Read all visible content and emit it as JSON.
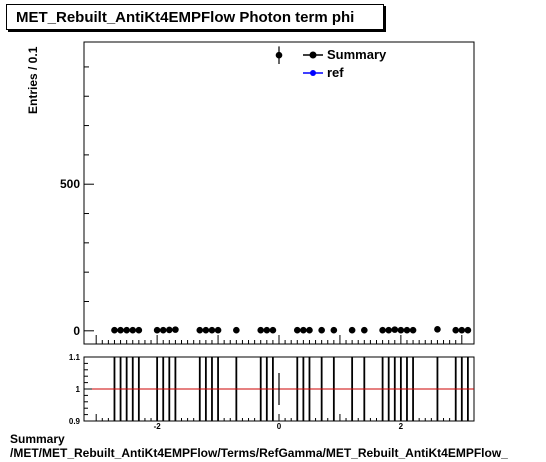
{
  "title": "MET_Rebuilt_AntiKt4EMPFlow Photon term phi",
  "footer": {
    "line1": "Summary",
    "line2": "/MET/MET_Rebuilt_AntiKt4EMPFlow/Terms/RefGamma/MET_Rebuilt_AntiKt4EMPFlow_"
  },
  "colors": {
    "summary": "#000000",
    "ref": "#0000ff",
    "ratio_line": "#cc0000"
  },
  "chart_data": [
    {
      "type": "scatter",
      "ylabel": "Entries / 0.1",
      "xlim": [
        -3.2,
        3.2
      ],
      "ylim": [
        -45,
        985
      ],
      "y_ticks": [
        0,
        500
      ],
      "legend_position": "top-right",
      "series": [
        {
          "name": "Summary",
          "x": [
            -2.7,
            -2.6,
            -2.5,
            -2.4,
            -2.3,
            -2.0,
            -1.9,
            -1.8,
            -1.7,
            -1.3,
            -1.2,
            -1.1,
            -1.0,
            -0.7,
            -0.3,
            -0.2,
            -0.1,
            0.0,
            0.3,
            0.4,
            0.5,
            0.7,
            0.9,
            1.2,
            1.4,
            1.7,
            1.8,
            1.9,
            2.0,
            2.1,
            2.2,
            2.6,
            2.9,
            3.0,
            3.1
          ],
          "y": [
            2,
            2,
            2,
            2,
            2,
            2,
            2,
            3,
            4,
            2,
            2,
            2,
            2,
            2,
            2,
            2,
            2,
            940,
            2,
            2,
            2,
            2,
            2,
            2,
            2,
            2,
            2,
            4,
            2,
            2,
            2,
            5,
            2,
            2,
            2
          ],
          "error_max": 30
        },
        {
          "name": "ref",
          "x": [],
          "y": []
        }
      ]
    },
    {
      "type": "line",
      "xlim": [
        -3.2,
        3.2
      ],
      "ylim": [
        0.9,
        1.1
      ],
      "y_ticks": [
        0.9,
        1,
        1.1
      ],
      "y_tick_labels": [
        "0.9",
        "1",
        "1.1"
      ],
      "x_ticks": [
        -2,
        0,
        2
      ],
      "x_tick_labels": [
        "-2",
        "0",
        "2"
      ],
      "reference_value": 1,
      "bands_x": [
        -2.7,
        -2.6,
        -2.5,
        -2.4,
        -2.3,
        -2.0,
        -1.9,
        -1.8,
        -1.7,
        -1.3,
        -1.2,
        -1.1,
        -1.0,
        -0.7,
        -0.3,
        -0.2,
        -0.1,
        0.3,
        0.4,
        0.5,
        0.7,
        0.9,
        1.2,
        1.4,
        1.7,
        1.8,
        1.9,
        2.0,
        2.1,
        2.2,
        2.6,
        2.9,
        3.0,
        3.1
      ],
      "center_x": 0.0,
      "center_err": 0.05
    }
  ]
}
